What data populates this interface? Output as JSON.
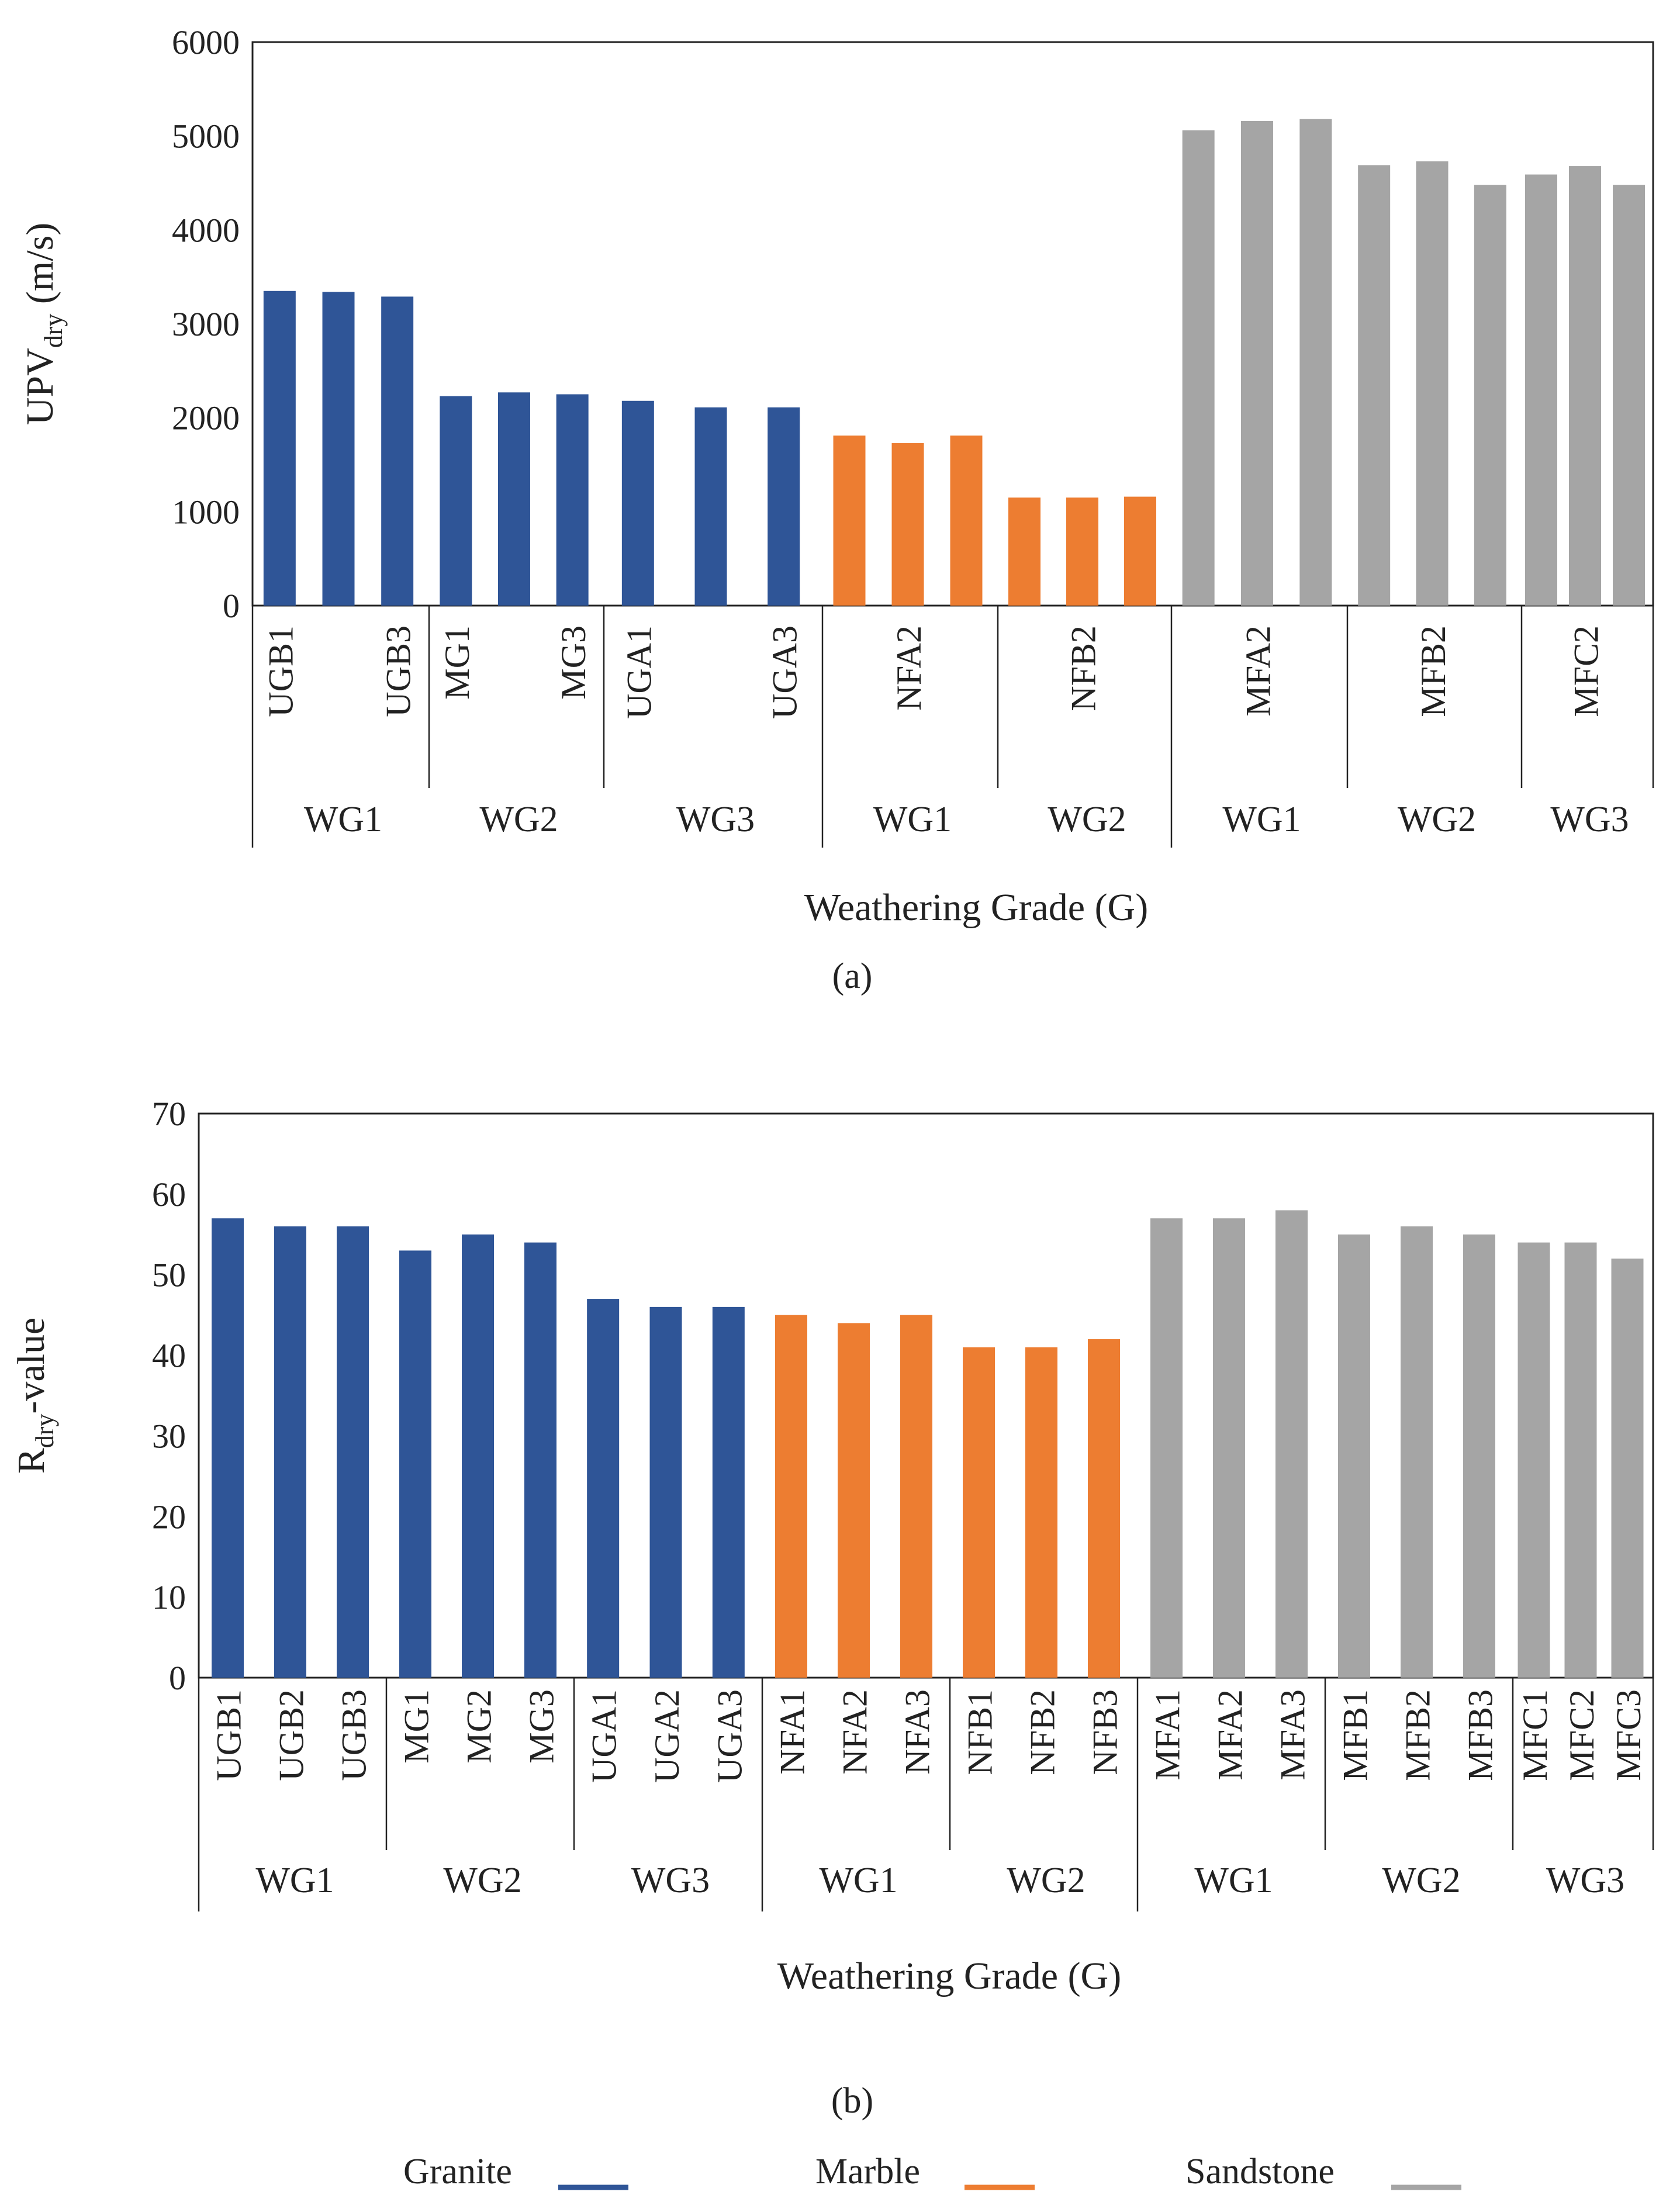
{
  "colors": {
    "Granite": "#2f5597",
    "Marble": "#ed7d31",
    "Sandstone": "#a5a5a5"
  },
  "legend": {
    "items": [
      {
        "label": "Granite",
        "color": "#2f5597"
      },
      {
        "label": "Marble",
        "color": "#ed7d31"
      },
      {
        "label": "Sandstone",
        "color": "#a5a5a5"
      }
    ]
  },
  "chart_data": [
    {
      "type": "bar",
      "caption": "(a)",
      "ylabel_main": "UPV",
      "ylabel_sub": "dry",
      "ylabel_tail": " (m/s)",
      "xlabel": "Weathering Grade (G)",
      "ylim": [
        0,
        6000
      ],
      "yticks": [
        "0",
        "1000",
        "2000",
        "3000",
        "4000",
        "5000",
        "6000"
      ],
      "grid": false,
      "groups": [
        {
          "label": "WG1",
          "rock": "Granite",
          "samples": [
            "UGB1",
            "UGB2",
            "UGB3"
          ],
          "labels": [
            "UGB1",
            "",
            "UGB3"
          ],
          "values": [
            3350,
            3340,
            3290
          ]
        },
        {
          "label": "WG2",
          "rock": "Granite",
          "samples": [
            "MG1",
            "MG2",
            "MG3"
          ],
          "labels": [
            "MG1",
            "",
            "MG3"
          ],
          "values": [
            2230,
            2270,
            2250
          ]
        },
        {
          "label": "WG3",
          "rock": "Granite",
          "samples": [
            "UGA1",
            "UGA2",
            "UGA3"
          ],
          "labels": [
            "UGA1",
            "",
            "UGA3"
          ],
          "values": [
            2180,
            2110,
            2110
          ]
        },
        {
          "label": "WG1",
          "rock": "Marble",
          "samples": [
            "NFA1",
            "NFA2",
            "NFA3"
          ],
          "labels": [
            "",
            "NFA2",
            ""
          ],
          "values": [
            1810,
            1730,
            1810
          ]
        },
        {
          "label": "WG2",
          "rock": "Marble",
          "samples": [
            "NFB1",
            "NFB2",
            "NFB3"
          ],
          "labels": [
            "",
            "NFB2",
            ""
          ],
          "values": [
            1150,
            1150,
            1160
          ]
        },
        {
          "label": "WG1",
          "rock": "Sandstone",
          "samples": [
            "MFA1",
            "MFA2",
            "MFA3"
          ],
          "labels": [
            "",
            "MFA2",
            ""
          ],
          "values": [
            5060,
            5160,
            5180
          ]
        },
        {
          "label": "WG2",
          "rock": "Sandstone",
          "samples": [
            "MFB1",
            "MFB2",
            "MFB3"
          ],
          "labels": [
            "",
            "MFB2",
            ""
          ],
          "values": [
            4690,
            4730,
            4480
          ]
        },
        {
          "label": "WG3",
          "rock": "Sandstone",
          "samples": [
            "MFC1",
            "MFC2",
            "MFC3"
          ],
          "labels": [
            "",
            "MFC2",
            ""
          ],
          "values": [
            4590,
            4680,
            4480
          ]
        }
      ]
    },
    {
      "type": "bar",
      "caption": "(b)",
      "ylabel_main": "R",
      "ylabel_sub": "dry",
      "ylabel_tail": "-value",
      "xlabel": "Weathering Grade (G)",
      "ylim": [
        0,
        70
      ],
      "yticks": [
        "0",
        "10",
        "20",
        "30",
        "40",
        "50",
        "60",
        "70"
      ],
      "grid": false,
      "groups": [
        {
          "label": "WG1",
          "rock": "Granite",
          "samples": [
            "UGB1",
            "UGB2",
            "UGB3"
          ],
          "labels": [
            "UGB1",
            "UGB2",
            "UGB3"
          ],
          "values": [
            57,
            56,
            56
          ]
        },
        {
          "label": "WG2",
          "rock": "Granite",
          "samples": [
            "MG1",
            "MG2",
            "MG3"
          ],
          "labels": [
            "MG1",
            "MG2",
            "MG3"
          ],
          "values": [
            53,
            55,
            54
          ]
        },
        {
          "label": "WG3",
          "rock": "Granite",
          "samples": [
            "UGA1",
            "UGA2",
            "UGA3"
          ],
          "labels": [
            "UGA1",
            "UGA2",
            "UGA3"
          ],
          "values": [
            47,
            46,
            46
          ]
        },
        {
          "label": "WG1",
          "rock": "Marble",
          "samples": [
            "NFA1",
            "NFA2",
            "NFA3"
          ],
          "labels": [
            "NFA1",
            "NFA2",
            "NFA3"
          ],
          "values": [
            45,
            44,
            45
          ]
        },
        {
          "label": "WG2",
          "rock": "Marble",
          "samples": [
            "NFB1",
            "NFB2",
            "NFB3"
          ],
          "labels": [
            "NFB1",
            "NFB2",
            "NFB3"
          ],
          "values": [
            41,
            41,
            42
          ]
        },
        {
          "label": "WG1",
          "rock": "Sandstone",
          "samples": [
            "MFA1",
            "MFA2",
            "MFA3"
          ],
          "labels": [
            "MFA1",
            "MFA2",
            "MFA3"
          ],
          "values": [
            57,
            57,
            58
          ]
        },
        {
          "label": "WG2",
          "rock": "Sandstone",
          "samples": [
            "MFB1",
            "MFB2",
            "MFB3"
          ],
          "labels": [
            "MFB1",
            "MFB2",
            "MFB3"
          ],
          "values": [
            55,
            56,
            55
          ]
        },
        {
          "label": "WG3",
          "rock": "Sandstone",
          "samples": [
            "MFC1",
            "MFC2",
            "MFC3"
          ],
          "labels": [
            "MFC1",
            "MFC2",
            "MFC3"
          ],
          "values": [
            54,
            54,
            52
          ]
        }
      ]
    }
  ]
}
